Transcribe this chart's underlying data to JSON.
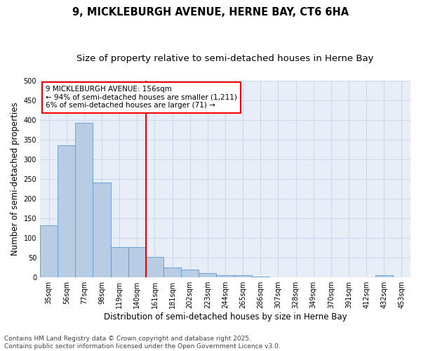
{
  "title": "9, MICKLEBURGH AVENUE, HERNE BAY, CT6 6HA",
  "subtitle": "Size of property relative to semi-detached houses in Herne Bay",
  "xlabel": "Distribution of semi-detached houses by size in Herne Bay",
  "ylabel": "Number of semi-detached properties",
  "categories": [
    "35sqm",
    "56sqm",
    "77sqm",
    "98sqm",
    "119sqm",
    "140sqm",
    "161sqm",
    "181sqm",
    "202sqm",
    "223sqm",
    "244sqm",
    "265sqm",
    "286sqm",
    "307sqm",
    "328sqm",
    "349sqm",
    "370sqm",
    "391sqm",
    "412sqm",
    "432sqm",
    "453sqm"
  ],
  "values": [
    131,
    335,
    393,
    241,
    76,
    76,
    52,
    25,
    19,
    10,
    5,
    5,
    1,
    0,
    0,
    0,
    0,
    0,
    0,
    4,
    0
  ],
  "bar_color": "#b8cce4",
  "bar_edge_color": "#5b9bd5",
  "grid_color": "#cdd8ea",
  "background_color": "#e8eef7",
  "prop_line_index": 6,
  "annotation_text_line1": "9 MICKLEBURGH AVENUE: 156sqm",
  "annotation_text_line2": "← 94% of semi-detached houses are smaller (1,211)",
  "annotation_text_line3": "6% of semi-detached houses are larger (71) →",
  "footer_line1": "Contains HM Land Registry data © Crown copyright and database right 2025.",
  "footer_line2": "Contains public sector information licensed under the Open Government Licence v3.0.",
  "ylim": [
    0,
    500
  ],
  "yticks": [
    0,
    50,
    100,
    150,
    200,
    250,
    300,
    350,
    400,
    450,
    500
  ],
  "title_fontsize": 10.5,
  "subtitle_fontsize": 9.5,
  "axis_label_fontsize": 8.5,
  "tick_fontsize": 7,
  "annotation_fontsize": 7.5,
  "footer_fontsize": 6.5
}
